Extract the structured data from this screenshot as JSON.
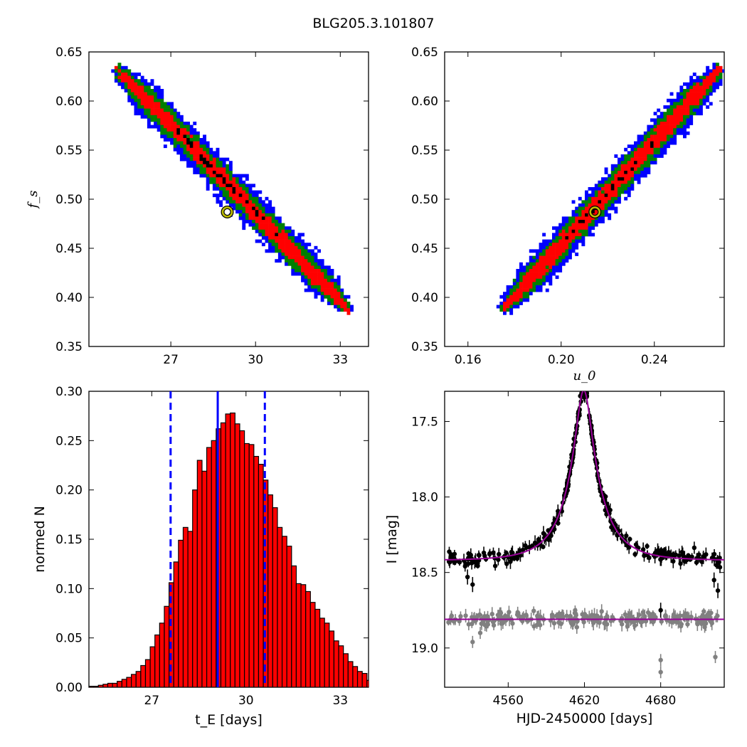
{
  "figure": {
    "title": "BLG205.3.101807"
  },
  "colors": {
    "blue": "#0000ff",
    "green": "#007f00",
    "red": "#ff0000",
    "black": "#000000",
    "marker_edge": "#bfbf00",
    "model": "#990099",
    "second": "#808080"
  },
  "chart_data": [
    {
      "type": "heatmap",
      "panel": "top-left",
      "xlabel": "",
      "ylabel": "f_s",
      "xlim": [
        24.1,
        34.0
      ],
      "ylim": [
        0.35,
        0.65
      ],
      "xticks": [
        "27",
        "30",
        "33"
      ],
      "xtick_values": [
        27,
        30,
        33
      ],
      "yticks": [
        "0.35",
        "0.40",
        "0.45",
        "0.50",
        "0.55",
        "0.60",
        "0.65"
      ],
      "ytick_values": [
        0.35,
        0.4,
        0.45,
        0.5,
        0.55,
        0.6,
        0.65
      ],
      "levels": [
        "blue",
        "green",
        "red",
        "black"
      ],
      "band": {
        "start": [
          25.2,
          0.63
        ],
        "end": [
          33.2,
          0.39
        ]
      },
      "best_fit": {
        "x": 29.0,
        "y": 0.487
      }
    },
    {
      "type": "heatmap",
      "panel": "top-right",
      "xlabel": "u_0",
      "ylabel": "",
      "xlim": [
        0.15,
        0.27
      ],
      "ylim": [
        0.35,
        0.65
      ],
      "xticks": [
        "0.16",
        "0.20",
        "0.24"
      ],
      "xtick_values": [
        0.16,
        0.2,
        0.24
      ],
      "yticks": [
        "0.35",
        "0.40",
        "0.45",
        "0.50",
        "0.55",
        "0.60",
        "0.65"
      ],
      "ytick_values": [
        0.35,
        0.4,
        0.45,
        0.5,
        0.55,
        0.6,
        0.65
      ],
      "levels": [
        "blue",
        "green",
        "red",
        "black"
      ],
      "band": {
        "start": [
          0.176,
          0.39
        ],
        "end": [
          0.267,
          0.63
        ]
      },
      "best_fit": {
        "x": 0.2145,
        "y": 0.487
      }
    },
    {
      "type": "bar",
      "panel": "bottom-left",
      "xlabel": "t_E [days]",
      "ylabel": "normed N",
      "xlim": [
        25.0,
        33.9
      ],
      "ylim": [
        0.0,
        0.3
      ],
      "xticks": [
        "27",
        "30",
        "33"
      ],
      "xtick_values": [
        27,
        30,
        33
      ],
      "yticks": [
        "0.00",
        "0.05",
        "0.10",
        "0.15",
        "0.20",
        "0.25",
        "0.30"
      ],
      "ytick_values": [
        0.0,
        0.05,
        0.1,
        0.15,
        0.2,
        0.25,
        0.3
      ],
      "bin_start": 25.0,
      "bin_width": 0.15,
      "values": [
        0.001,
        0.001,
        0.002,
        0.003,
        0.004,
        0.004,
        0.006,
        0.008,
        0.01,
        0.013,
        0.016,
        0.022,
        0.028,
        0.041,
        0.053,
        0.065,
        0.082,
        0.106,
        0.127,
        0.149,
        0.162,
        0.158,
        0.2,
        0.23,
        0.219,
        0.243,
        0.25,
        0.262,
        0.268,
        0.277,
        0.278,
        0.267,
        0.26,
        0.247,
        0.246,
        0.234,
        0.226,
        0.21,
        0.195,
        0.182,
        0.162,
        0.153,
        0.143,
        0.123,
        0.105,
        0.104,
        0.097,
        0.086,
        0.079,
        0.07,
        0.065,
        0.057,
        0.047,
        0.042,
        0.034,
        0.026,
        0.021,
        0.016,
        0.014,
        0.007,
        0.005,
        0.002,
        0.001
      ],
      "median": 29.1,
      "interval": [
        27.6,
        30.6
      ]
    },
    {
      "type": "scatter",
      "panel": "bottom-right",
      "xlabel": "HJD-2450000 [days]",
      "ylabel": "I [mag]",
      "xlim": [
        4510,
        4730
      ],
      "ylim": [
        19.26,
        17.3
      ],
      "xticks": [
        "4560",
        "4620",
        "4680"
      ],
      "xtick_values": [
        4560,
        4620,
        4680
      ],
      "yticks": [
        "17.5",
        "18.0",
        "18.5",
        "19.0"
      ],
      "ytick_values": [
        17.5,
        18.0,
        18.5,
        19.0
      ],
      "series": [
        {
          "baseline": 18.42,
          "peak": 17.3,
          "t0": 4619.5,
          "tE": 29.0,
          "u0": 0.2145,
          "fs": 0.487,
          "scatter": 0.035
        },
        {
          "baseline": 18.81,
          "scatter": 0.035
        }
      ]
    }
  ]
}
